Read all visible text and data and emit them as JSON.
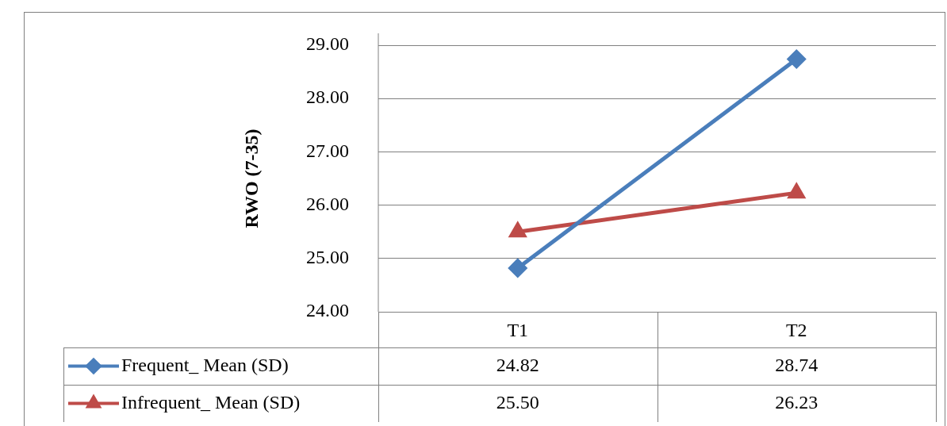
{
  "chart_data": {
    "type": "line",
    "ylabel": "RWO (7-35)",
    "categories": [
      "T1",
      "T2"
    ],
    "series": [
      {
        "name": "Frequent_ Mean (SD)",
        "color": "#4a7ebb",
        "marker": "diamond",
        "values": [
          24.82,
          28.74
        ],
        "value_labels": [
          "24.82",
          "28.74"
        ]
      },
      {
        "name": "Infrequent_ Mean (SD)",
        "color": "#be4b48",
        "marker": "triangle",
        "values": [
          25.5,
          26.23
        ],
        "value_labels": [
          "25.50",
          "26.23"
        ]
      }
    ],
    "ylim": [
      24,
      29
    ],
    "yticks": [
      {
        "value": 24,
        "label": "24.00"
      },
      {
        "value": 25,
        "label": "25.00"
      },
      {
        "value": 26,
        "label": "26.00"
      },
      {
        "value": 27,
        "label": "27.00"
      },
      {
        "value": 28,
        "label": "28.00"
      },
      {
        "value": 29,
        "label": "29.00"
      }
    ],
    "grid": "y",
    "legend": "bottom",
    "line_style": "solid"
  }
}
